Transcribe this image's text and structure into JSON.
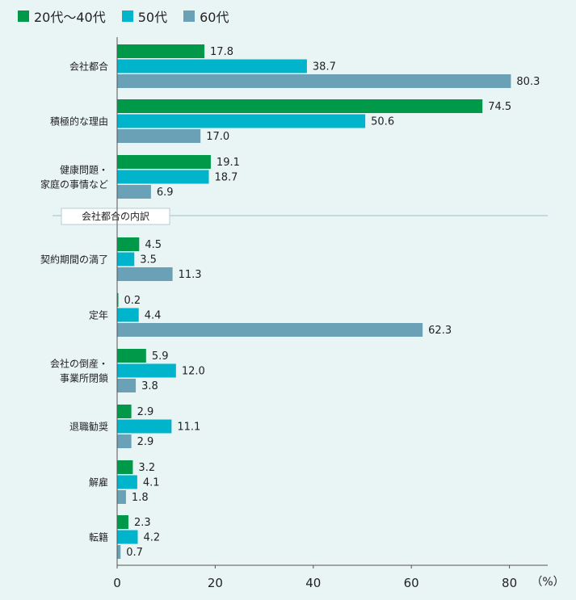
{
  "chart_data": {
    "type": "bar",
    "orientation": "horizontal",
    "series": [
      {
        "name": "20代〜40代",
        "color": "#00994a"
      },
      {
        "name": "50代",
        "color": "#00b4cc"
      },
      {
        "name": "60代",
        "color": "#6aa1b7"
      }
    ],
    "groups": [
      {
        "label": [
          "会社都合"
        ],
        "values": [
          17.8,
          38.7,
          80.3
        ],
        "labels": [
          "17.8",
          "38.7",
          "80.3"
        ]
      },
      {
        "label": [
          "積極的な理由"
        ],
        "values": [
          74.5,
          50.6,
          17.0
        ],
        "labels": [
          "74.5",
          "50.6",
          "17.0"
        ]
      },
      {
        "label": [
          "健康問題・",
          "家庭の事情など"
        ],
        "values": [
          19.1,
          18.7,
          6.9
        ],
        "labels": [
          "19.1",
          "18.7",
          "6.9"
        ]
      },
      {
        "label": [
          "契約期間の満了"
        ],
        "values": [
          4.5,
          3.5,
          11.3
        ],
        "labels": [
          "4.5",
          "3.5",
          "11.3"
        ]
      },
      {
        "label": [
          "定年"
        ],
        "values": [
          0.2,
          4.4,
          62.3
        ],
        "labels": [
          "0.2",
          "4.4",
          "62.3"
        ]
      },
      {
        "label": [
          "会社の倒産・",
          "事業所閉鎖"
        ],
        "values": [
          5.9,
          12.0,
          3.8
        ],
        "labels": [
          "5.9",
          "12.0",
          "3.8"
        ]
      },
      {
        "label": [
          "退職勧奨"
        ],
        "values": [
          2.9,
          11.1,
          2.9
        ],
        "labels": [
          "2.9",
          "11.1",
          "2.9"
        ]
      },
      {
        "label": [
          "解雇"
        ],
        "values": [
          3.2,
          4.1,
          1.8
        ],
        "labels": [
          "3.2",
          "4.1",
          "1.8"
        ]
      },
      {
        "label": [
          "転籍"
        ],
        "values": [
          2.3,
          4.2,
          0.7
        ],
        "labels": [
          "2.3",
          "4.2",
          "0.7"
        ]
      }
    ],
    "section_label": "会社都合の内訳",
    "x_ticks": [
      0,
      20,
      40,
      60,
      80
    ],
    "xlim": [
      0,
      88
    ],
    "unit_label": "（%）"
  }
}
